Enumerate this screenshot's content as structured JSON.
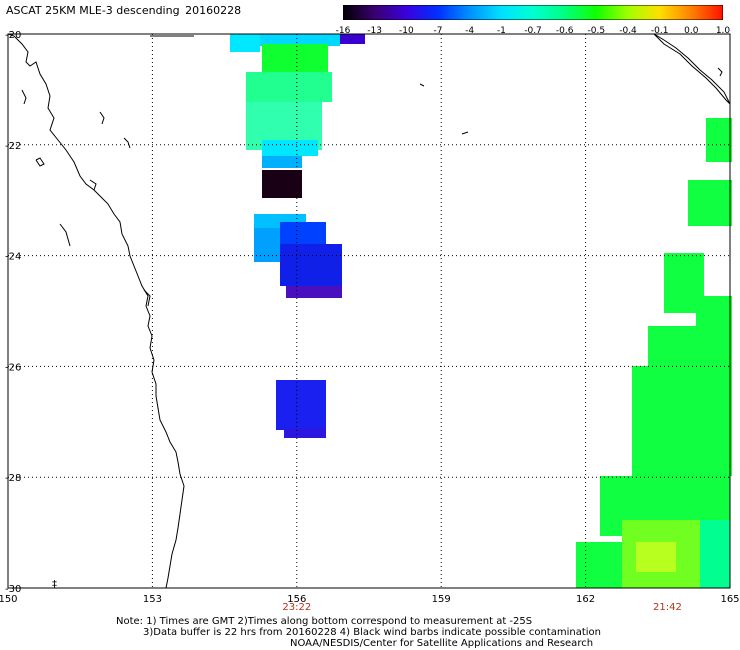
{
  "title": {
    "product": "ASCAT 25KM MLE-3 descending",
    "date": "20160228"
  },
  "colorbar": {
    "labels": [
      "-16",
      "-13",
      "-10",
      "-7",
      "-4",
      "-1",
      "-0.7",
      "-0.6",
      "-0.5",
      "-0.4",
      "-0.1",
      "0.0",
      "1.0"
    ],
    "colors": [
      "#000000",
      "#3a0070",
      "#3a00e0",
      "#0030ff",
      "#0090ff",
      "#00e0ff",
      "#00ffd0",
      "#00ff80",
      "#10ff00",
      "#a0ff00",
      "#ffe000",
      "#ff8000",
      "#ff1000"
    ]
  },
  "axes": {
    "lat_labels": [
      "-20",
      "-22",
      "-24",
      "-26",
      "-28",
      "-30"
    ],
    "lon_labels": [
      "150",
      "153",
      "156",
      "159",
      "162",
      "165"
    ]
  },
  "pass_times": [
    {
      "lon": 156,
      "label": "23:22"
    },
    {
      "lon": 163.7,
      "label": "21:42"
    }
  ],
  "notes": {
    "line1": "Note: 1) Times are GMT 2)Times along bottom correspond to measurement at -25S",
    "line2": "3)Data buffer is 22 hrs from 20160228 4) Black wind barbs indicate possible contamination",
    "line3": "NOAA/NESDIS/Center for Satellite Applications and Research"
  },
  "colors": {
    "land_outline": "#000000",
    "grid": "#000000",
    "time_text": "#b5341a"
  }
}
